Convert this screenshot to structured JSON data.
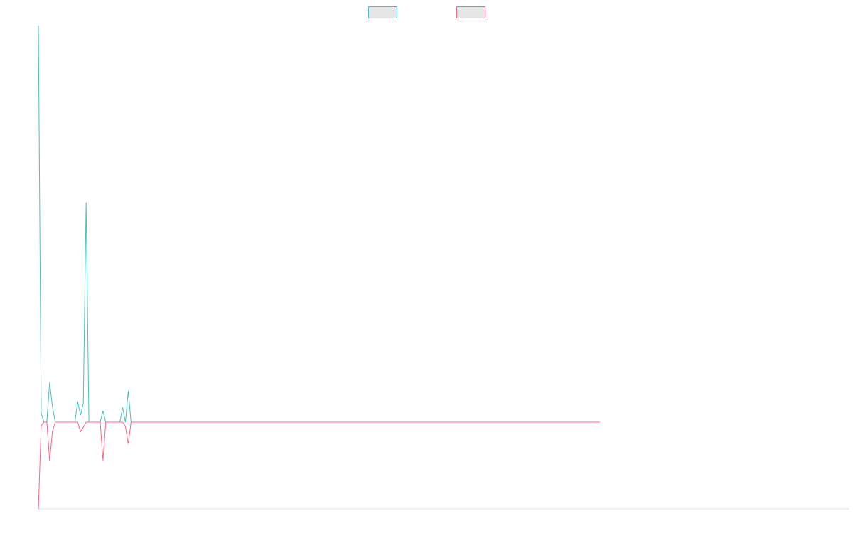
{
  "chart_data": {
    "type": "line",
    "title": "",
    "xlabel": "",
    "ylabel": "",
    "grid": false,
    "legend_position": "top-center",
    "ylim": [
      -1.0,
      4.6
    ],
    "series": [
      {
        "color": "#4bc0c0",
        "legend_fill": "#e6e6e6",
        "points": [
          [
            0,
            4.6
          ],
          [
            1,
            0.1
          ],
          [
            2,
            0
          ],
          [
            3,
            0
          ],
          [
            4,
            0.46
          ],
          [
            5,
            0.18
          ],
          [
            6,
            0
          ],
          [
            7,
            0
          ],
          [
            8,
            0
          ],
          [
            9,
            0
          ],
          [
            10,
            0
          ],
          [
            11,
            0
          ],
          [
            12,
            0
          ],
          [
            13,
            0
          ],
          [
            14,
            0.24
          ],
          [
            15,
            0.08
          ],
          [
            16,
            0.22
          ],
          [
            17,
            2.55
          ],
          [
            18,
            0
          ],
          [
            19,
            0
          ],
          [
            20,
            0
          ],
          [
            21,
            0
          ],
          [
            22,
            0
          ],
          [
            23,
            0.13
          ],
          [
            24,
            0
          ],
          [
            25,
            0
          ],
          [
            26,
            0
          ],
          [
            27,
            0
          ],
          [
            28,
            0
          ],
          [
            29,
            0
          ],
          [
            30,
            0.17
          ],
          [
            31,
            0
          ],
          [
            32,
            0.36
          ],
          [
            33,
            0
          ],
          [
            34,
            0
          ],
          [
            200,
            0
          ]
        ]
      },
      {
        "color": "#ff6384",
        "legend_fill": "#e6e6e6",
        "points": [
          [
            0,
            -1.0
          ],
          [
            1,
            -0.04
          ],
          [
            2,
            0
          ],
          [
            3,
            0
          ],
          [
            4,
            -0.44
          ],
          [
            5,
            -0.11
          ],
          [
            6,
            0
          ],
          [
            7,
            0
          ],
          [
            8,
            0
          ],
          [
            9,
            0
          ],
          [
            10,
            0
          ],
          [
            11,
            0
          ],
          [
            12,
            0
          ],
          [
            13,
            0
          ],
          [
            14,
            0
          ],
          [
            15,
            -0.11
          ],
          [
            16,
            -0.06
          ],
          [
            17,
            0
          ],
          [
            18,
            0
          ],
          [
            19,
            0
          ],
          [
            20,
            0
          ],
          [
            21,
            0
          ],
          [
            22,
            0
          ],
          [
            23,
            -0.44
          ],
          [
            24,
            0
          ],
          [
            25,
            0
          ],
          [
            26,
            0
          ],
          [
            27,
            0
          ],
          [
            28,
            0
          ],
          [
            29,
            0
          ],
          [
            30,
            0
          ],
          [
            31,
            -0.05
          ],
          [
            32,
            -0.25
          ],
          [
            33,
            0
          ],
          [
            34,
            0
          ],
          [
            200,
            0
          ]
        ]
      }
    ]
  }
}
